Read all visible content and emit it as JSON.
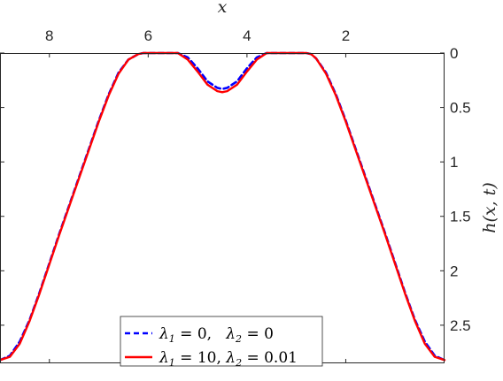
{
  "chart_data": {
    "type": "line",
    "xlabel": "x",
    "ylabel": "h(x, t)",
    "xlim": [
      9.0,
      0.0
    ],
    "ylim": [
      0,
      2.85
    ],
    "x_reversed": true,
    "y_reversed": true,
    "x_axis_location": "top",
    "y_axis_location": "right",
    "xticks": [
      8,
      6,
      4,
      2
    ],
    "yticks": [
      0,
      0.5,
      1,
      1.5,
      2,
      2.5
    ],
    "xtick_labels": [
      "8",
      "6",
      "4",
      "2"
    ],
    "ytick_labels": [
      "0",
      "0.5",
      "1",
      "1.5",
      "2",
      "2.5"
    ],
    "grid": false,
    "legend_position": "bottom-center",
    "series": [
      {
        "name": "λ1 = 0,   λ2 = 0",
        "style": "dashed",
        "color": "#0000ff",
        "x": [
          9.0,
          8.8,
          8.6,
          8.4,
          8.2,
          8.0,
          7.8,
          7.6,
          7.4,
          7.2,
          7.0,
          6.8,
          6.6,
          6.4,
          6.2,
          6.1,
          6.0,
          5.8,
          5.6,
          5.4,
          5.2,
          5.0,
          4.8,
          4.6,
          4.5,
          4.4,
          4.2,
          4.0,
          3.8,
          3.6,
          3.5,
          3.3,
          3.1,
          2.9,
          2.8,
          2.7,
          2.6,
          2.4,
          2.2,
          2.0,
          1.8,
          1.6,
          1.4,
          1.2,
          1.0,
          0.8,
          0.6,
          0.4,
          0.2,
          0.0
        ],
        "y": [
          2.82,
          2.78,
          2.65,
          2.45,
          2.2,
          1.93,
          1.66,
          1.4,
          1.14,
          0.88,
          0.62,
          0.38,
          0.18,
          0.06,
          0.01,
          0.0,
          0.0,
          0.0,
          0.0,
          0.0,
          0.04,
          0.14,
          0.26,
          0.32,
          0.33,
          0.32,
          0.26,
          0.14,
          0.04,
          0.0,
          0.0,
          0.0,
          0.0,
          0.0,
          0.0,
          0.01,
          0.05,
          0.18,
          0.38,
          0.62,
          0.88,
          1.14,
          1.4,
          1.66,
          1.93,
          2.2,
          2.45,
          2.65,
          2.78,
          2.82
        ]
      },
      {
        "name": "λ1 = 10, λ2 = 0.01",
        "style": "solid",
        "color": "#ff0000",
        "x": [
          9.0,
          8.8,
          8.6,
          8.4,
          8.2,
          8.0,
          7.8,
          7.6,
          7.4,
          7.2,
          7.0,
          6.8,
          6.6,
          6.4,
          6.2,
          6.1,
          6.0,
          5.8,
          5.6,
          5.4,
          5.2,
          5.0,
          4.8,
          4.6,
          4.5,
          4.4,
          4.2,
          4.0,
          3.8,
          3.6,
          3.5,
          3.3,
          3.1,
          2.9,
          2.8,
          2.7,
          2.6,
          2.4,
          2.2,
          2.0,
          1.8,
          1.6,
          1.4,
          1.2,
          1.0,
          0.8,
          0.6,
          0.4,
          0.2,
          0.0
        ],
        "y": [
          2.82,
          2.79,
          2.67,
          2.46,
          2.21,
          1.94,
          1.67,
          1.41,
          1.15,
          0.89,
          0.63,
          0.39,
          0.19,
          0.06,
          0.01,
          0.0,
          0.0,
          0.0,
          0.0,
          0.0,
          0.06,
          0.17,
          0.29,
          0.35,
          0.36,
          0.35,
          0.29,
          0.17,
          0.06,
          0.0,
          0.0,
          0.0,
          0.0,
          0.0,
          0.0,
          0.01,
          0.05,
          0.19,
          0.39,
          0.63,
          0.89,
          1.15,
          1.41,
          1.67,
          1.94,
          2.21,
          2.46,
          2.67,
          2.79,
          2.82
        ]
      }
    ],
    "legend": {
      "entries": [
        {
          "part1_sym": "λ",
          "part1_sub": "1",
          "part1_rest": " = 0,   ",
          "part2_sym": "λ",
          "part2_sub": "2",
          "part2_rest": " = 0"
        },
        {
          "part1_sym": "λ",
          "part1_sub": "1",
          "part1_rest": " = 10, ",
          "part2_sym": "λ",
          "part2_sub": "2",
          "part2_rest": " = 0.01"
        }
      ]
    }
  }
}
